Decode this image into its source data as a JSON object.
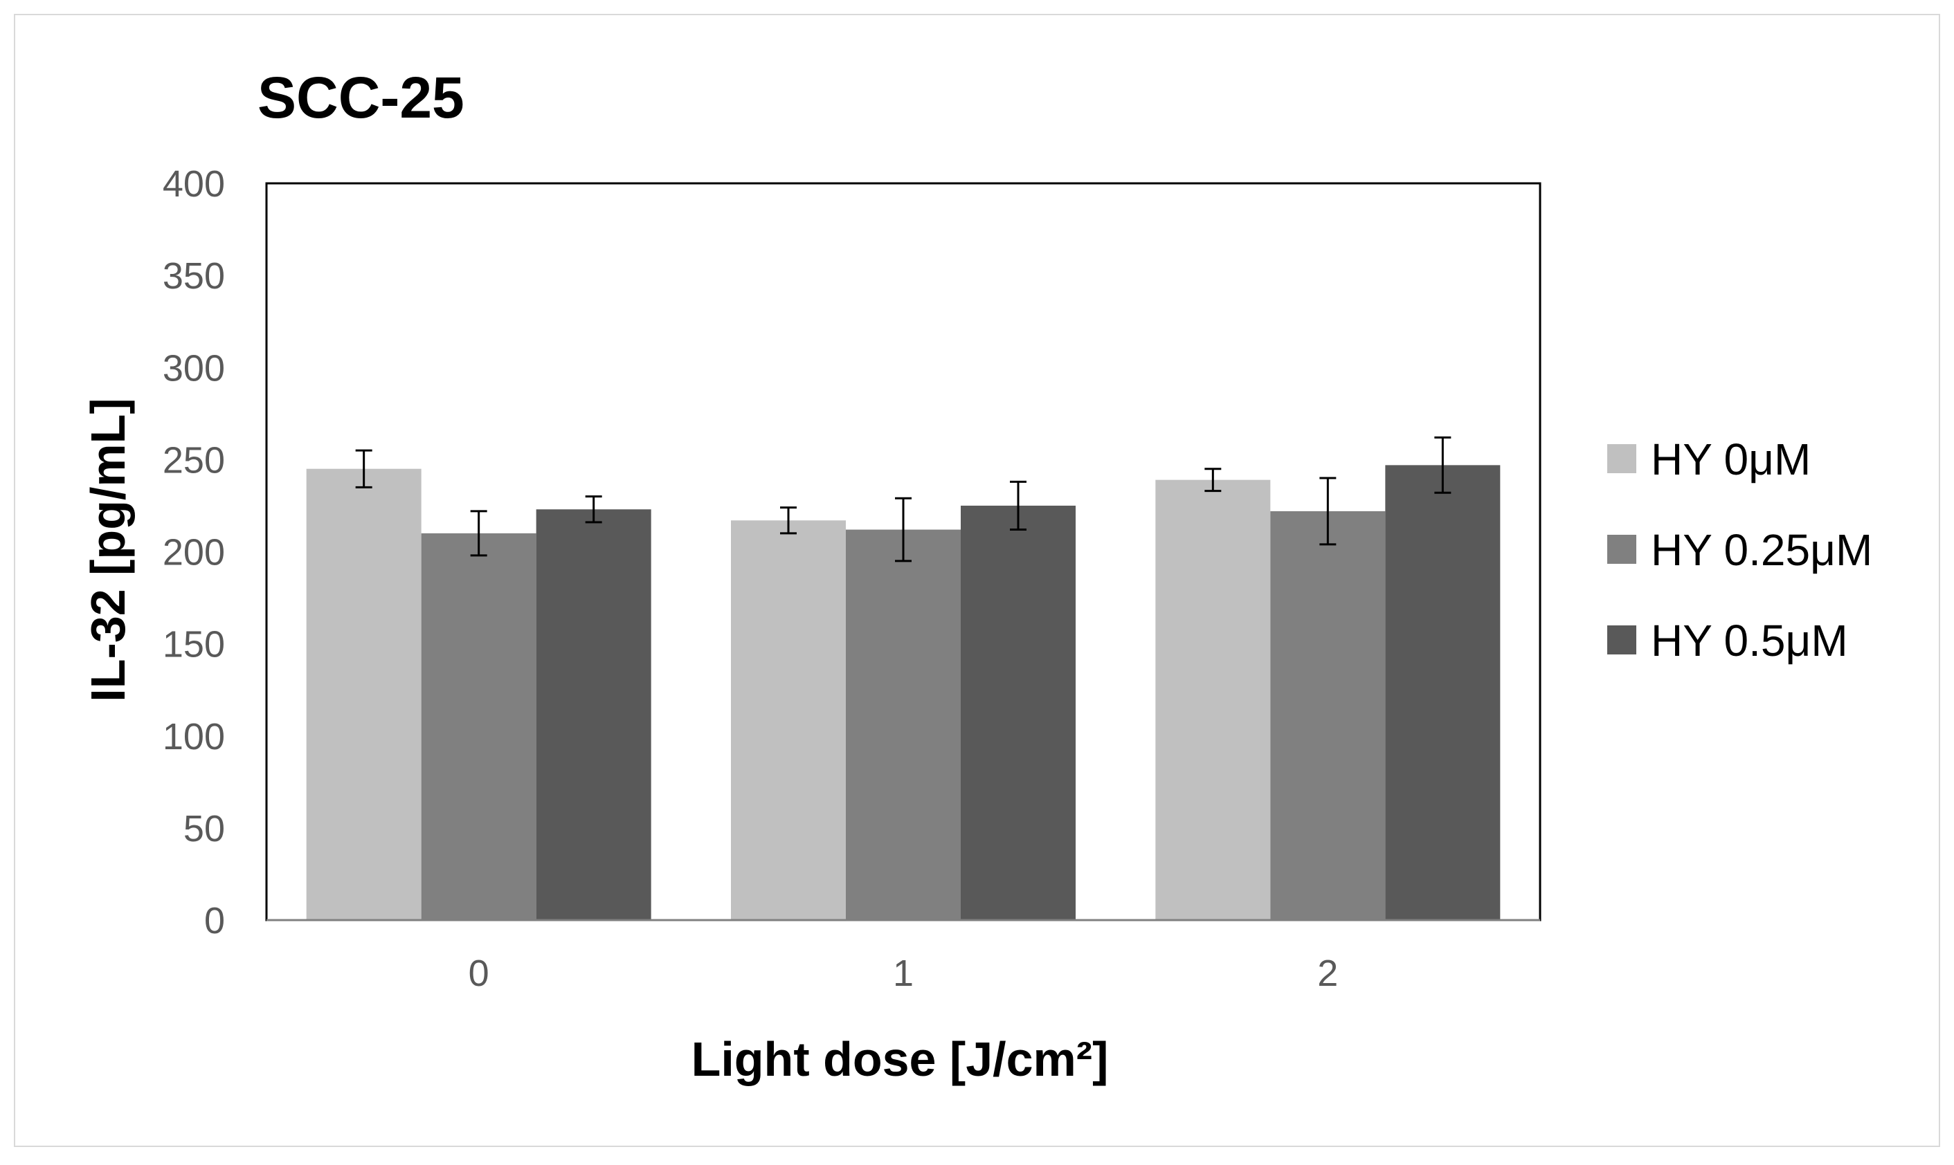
{
  "chart_data": {
    "type": "bar",
    "title": "SCC-25",
    "xlabel": "Light dose [J/cm²]",
    "ylabel": "IL-32 [pg/mL]",
    "ylim": [
      0,
      400
    ],
    "yticks": [
      0,
      50,
      100,
      150,
      200,
      250,
      300,
      350,
      400
    ],
    "categories": [
      "0",
      "1",
      "2"
    ],
    "grid": false,
    "legend_position": "right",
    "series": [
      {
        "name": "HY 0μM",
        "color": "#c0c0c0",
        "values": [
          245,
          217,
          239
        ],
        "errors": [
          10,
          7,
          6
        ]
      },
      {
        "name": "HY 0.25μM",
        "color": "#808080",
        "values": [
          210,
          212,
          222
        ],
        "errors": [
          12,
          17,
          18
        ]
      },
      {
        "name": "HY 0.5μM",
        "color": "#595959",
        "values": [
          223,
          225,
          247
        ],
        "errors": [
          7,
          13,
          15
        ]
      }
    ]
  }
}
